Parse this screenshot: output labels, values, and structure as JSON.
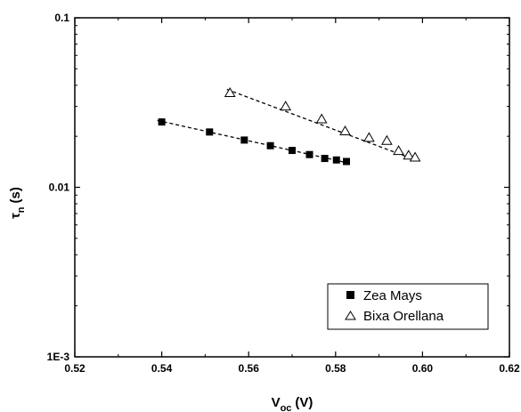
{
  "chart_data": {
    "type": "scatter",
    "xlabel_main": "V",
    "xlabel_sub": "oc",
    "xlabel_unit": "(V)",
    "ylabel_main": "τ",
    "ylabel_sub": "n",
    "ylabel_unit": "(s)",
    "xlim": [
      0.52,
      0.62
    ],
    "ylim": [
      0.001,
      0.1
    ],
    "yscale": "log",
    "x_ticks": [
      "0.52",
      "0.54",
      "0.56",
      "0.58",
      "0.60",
      "0.62"
    ],
    "y_ticks": [
      "1E-3",
      "0.01",
      "0.1"
    ],
    "legend_position": "bottom-right",
    "series": [
      {
        "name": "Zea Mays",
        "marker": "filled-square",
        "color": "#000000",
        "x": [
          0.54,
          0.551,
          0.559,
          0.565,
          0.57,
          0.574,
          0.5775,
          0.5802,
          0.5825
        ],
        "y": [
          0.0243,
          0.0212,
          0.019,
          0.0176,
          0.0165,
          0.0156,
          0.0148,
          0.0145,
          0.0142
        ],
        "fit": {
          "style": "dashed",
          "x": [
            0.539,
            0.583
          ],
          "y": [
            0.0248,
            0.0139
          ]
        }
      },
      {
        "name": "Bixa Orellana",
        "marker": "open-triangle",
        "color": "#000000",
        "x": [
          0.5557,
          0.5685,
          0.5768,
          0.5822,
          0.5877,
          0.5918,
          0.5945,
          0.5968,
          0.5983
        ],
        "y": [
          0.036,
          0.03,
          0.0252,
          0.0214,
          0.0196,
          0.0188,
          0.0164,
          0.0154,
          0.015
        ],
        "fit": {
          "style": "dashed",
          "x": [
            0.555,
            0.599
          ],
          "y": [
            0.0378,
            0.0143
          ]
        }
      }
    ]
  }
}
